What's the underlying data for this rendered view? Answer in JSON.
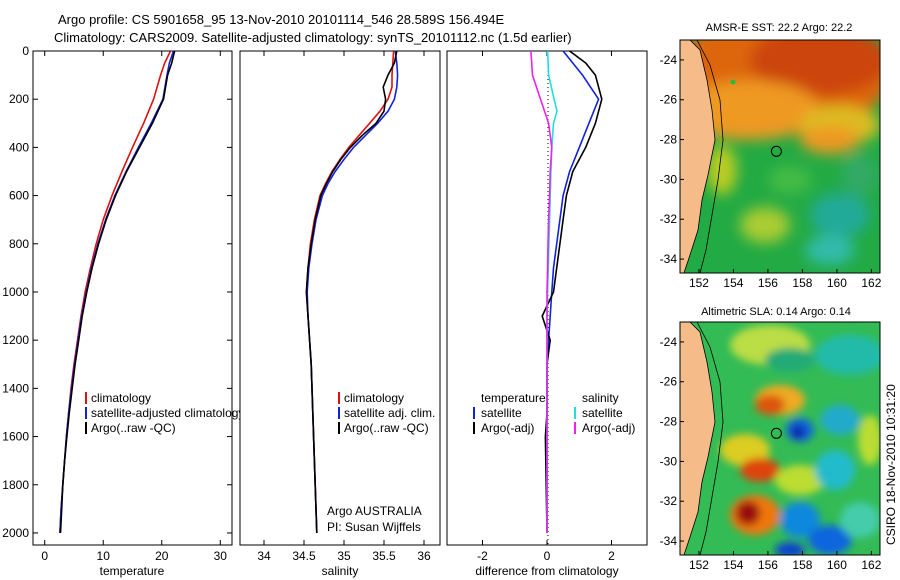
{
  "header": {
    "line1": "Argo profile: CS 5901658_95 13-Nov-2010 20101114_546 28.589S 156.494E",
    "line2": "Climatology: CARS2009. Satellite-adjusted climatology: synTS_20101112.nc (1.5d earlier)"
  },
  "side_label": "CSIRO 18-Nov-2010 10:31:20",
  "colors": {
    "climatology": "#dd1111",
    "satellite": "#1122dd",
    "argo": "#000000",
    "sat_salinity": "#22dddd",
    "argo_salinity_adj": "#ee22ee",
    "land": "#f5bb88"
  },
  "chart_data": [
    {
      "type": "line",
      "id": "temperature",
      "xlabel": "temperature",
      "ylabel": "",
      "xlim": [
        -2,
        32
      ],
      "ylim": [
        2050,
        0
      ],
      "xticks": [
        0,
        10,
        20,
        30
      ],
      "yticks": [
        0,
        200,
        400,
        600,
        800,
        1000,
        1200,
        1400,
        1600,
        1800,
        2000
      ],
      "legend": [
        "climatology",
        "satellite-adjusted climatology",
        "Argo(..raw -QC)"
      ],
      "series": [
        {
          "name": "climatology",
          "color": "#dd1111",
          "points": [
            [
              21.5,
              0
            ],
            [
              20.5,
              50
            ],
            [
              19.8,
              100
            ],
            [
              18.6,
              200
            ],
            [
              16.9,
              300
            ],
            [
              15.0,
              400
            ],
            [
              13.2,
              500
            ],
            [
              11.5,
              600
            ],
            [
              10.0,
              700
            ],
            [
              8.8,
              800
            ],
            [
              7.8,
              900
            ],
            [
              6.9,
              1000
            ],
            [
              6.2,
              1100
            ],
            [
              5.6,
              1200
            ],
            [
              5.0,
              1300
            ],
            [
              4.5,
              1400
            ],
            [
              4.1,
              1500
            ],
            [
              3.7,
              1600
            ],
            [
              3.4,
              1700
            ],
            [
              3.1,
              1800
            ],
            [
              2.8,
              1900
            ],
            [
              2.6,
              2000
            ]
          ]
        },
        {
          "name": "satellite",
          "color": "#1122dd",
          "points": [
            [
              22.0,
              0
            ],
            [
              21.3,
              50
            ],
            [
              20.9,
              100
            ],
            [
              20.2,
              200
            ],
            [
              18.2,
              300
            ],
            [
              16.0,
              400
            ],
            [
              13.9,
              500
            ],
            [
              12.0,
              600
            ],
            [
              10.4,
              700
            ],
            [
              9.1,
              800
            ],
            [
              8.0,
              900
            ],
            [
              7.1,
              1000
            ],
            [
              6.3,
              1100
            ],
            [
              5.7,
              1200
            ],
            [
              5.1,
              1300
            ],
            [
              4.6,
              1400
            ],
            [
              4.1,
              1500
            ],
            [
              3.7,
              1600
            ],
            [
              3.4,
              1700
            ],
            [
              3.1,
              1800
            ],
            [
              2.8,
              1900
            ],
            [
              2.6,
              2000
            ]
          ]
        },
        {
          "name": "Argo",
          "color": "#000000",
          "points": [
            [
              22.2,
              0
            ],
            [
              21.7,
              50
            ],
            [
              21.0,
              100
            ],
            [
              20.3,
              200
            ],
            [
              18.4,
              300
            ],
            [
              16.2,
              400
            ],
            [
              14.0,
              500
            ],
            [
              12.1,
              600
            ],
            [
              10.5,
              700
            ],
            [
              9.2,
              800
            ],
            [
              8.1,
              900
            ],
            [
              7.2,
              1000
            ],
            [
              6.4,
              1100
            ],
            [
              5.8,
              1200
            ],
            [
              5.2,
              1300
            ],
            [
              4.7,
              1400
            ],
            [
              4.2,
              1500
            ],
            [
              3.8,
              1600
            ],
            [
              3.4,
              1700
            ],
            [
              3.1,
              1800
            ],
            [
              2.9,
              1900
            ],
            [
              2.7,
              2000
            ]
          ]
        }
      ]
    },
    {
      "type": "line",
      "id": "salinity",
      "xlabel": "salinity",
      "xlim": [
        33.7,
        36.2
      ],
      "ylim": [
        2050,
        0
      ],
      "xticks": [
        34,
        34.5,
        35,
        35.5,
        36
      ],
      "yticks": [],
      "legend": [
        "climatology",
        "satellite adj. clim.",
        "Argo(..raw -QC)"
      ],
      "annotation": [
        "Argo AUSTRALIA",
        "PI: Susan Wijffels"
      ],
      "series": [
        {
          "name": "climatology",
          "color": "#dd1111",
          "points": [
            [
              35.62,
              0
            ],
            [
              35.61,
              50
            ],
            [
              35.6,
              100
            ],
            [
              35.6,
              150
            ],
            [
              35.55,
              200
            ],
            [
              35.45,
              250
            ],
            [
              35.32,
              300
            ],
            [
              35.19,
              350
            ],
            [
              35.06,
              400
            ],
            [
              34.95,
              450
            ],
            [
              34.85,
              500
            ],
            [
              34.77,
              550
            ],
            [
              34.7,
              600
            ],
            [
              34.63,
              700
            ],
            [
              34.58,
              800
            ],
            [
              34.55,
              900
            ],
            [
              34.53,
              1000
            ],
            [
              34.55,
              1100
            ],
            [
              34.57,
              1200
            ],
            [
              34.59,
              1300
            ],
            [
              34.6,
              1400
            ],
            [
              34.61,
              1500
            ],
            [
              34.62,
              1600
            ],
            [
              34.63,
              1700
            ],
            [
              34.64,
              1800
            ],
            [
              34.65,
              1900
            ],
            [
              34.66,
              2000
            ]
          ]
        },
        {
          "name": "satellite",
          "color": "#1122dd",
          "points": [
            [
              35.64,
              0
            ],
            [
              35.66,
              50
            ],
            [
              35.67,
              100
            ],
            [
              35.66,
              150
            ],
            [
              35.63,
              200
            ],
            [
              35.55,
              250
            ],
            [
              35.42,
              300
            ],
            [
              35.27,
              350
            ],
            [
              35.12,
              400
            ],
            [
              35.0,
              450
            ],
            [
              34.89,
              500
            ],
            [
              34.8,
              550
            ],
            [
              34.73,
              600
            ],
            [
              34.65,
              700
            ],
            [
              34.6,
              800
            ],
            [
              34.56,
              900
            ],
            [
              34.54,
              1000
            ],
            [
              34.55,
              1100
            ],
            [
              34.57,
              1200
            ],
            [
              34.59,
              1300
            ],
            [
              34.6,
              1400
            ],
            [
              34.61,
              1500
            ],
            [
              34.62,
              1600
            ],
            [
              34.63,
              1700
            ],
            [
              34.64,
              1800
            ],
            [
              34.65,
              1900
            ],
            [
              34.66,
              2000
            ]
          ]
        },
        {
          "name": "Argo",
          "color": "#000000",
          "points": [
            [
              35.66,
              0
            ],
            [
              35.63,
              50
            ],
            [
              35.55,
              100
            ],
            [
              35.49,
              150
            ],
            [
              35.52,
              200
            ],
            [
              35.5,
              250
            ],
            [
              35.4,
              300
            ],
            [
              35.23,
              350
            ],
            [
              35.08,
              400
            ],
            [
              34.96,
              450
            ],
            [
              34.86,
              500
            ],
            [
              34.78,
              550
            ],
            [
              34.71,
              600
            ],
            [
              34.64,
              700
            ],
            [
              34.59,
              800
            ],
            [
              34.55,
              900
            ],
            [
              34.53,
              1000
            ],
            [
              34.55,
              1100
            ],
            [
              34.57,
              1200
            ],
            [
              34.59,
              1300
            ],
            [
              34.6,
              1400
            ],
            [
              34.61,
              1500
            ],
            [
              34.62,
              1600
            ],
            [
              34.63,
              1700
            ],
            [
              34.64,
              1800
            ],
            [
              34.65,
              1900
            ],
            [
              34.66,
              2000
            ]
          ]
        }
      ]
    },
    {
      "type": "line",
      "id": "difference",
      "xlabel": "difference from climatology",
      "xlim": [
        -3.1,
        3.1
      ],
      "ylim": [
        2050,
        0
      ],
      "xticks": [
        -2,
        0,
        2
      ],
      "yticks": [],
      "legend_left": [
        "temperature",
        "satellite",
        "Argo(-adj)"
      ],
      "legend_right": [
        "salinity",
        "satellite",
        "Argo(-adj)"
      ],
      "series": [
        {
          "name": "temperature satellite",
          "color": "#1122dd",
          "points": [
            [
              0.5,
              0
            ],
            [
              0.8,
              50
            ],
            [
              1.1,
              100
            ],
            [
              1.6,
              200
            ],
            [
              1.3,
              300
            ],
            [
              1.0,
              400
            ],
            [
              0.7,
              500
            ],
            [
              0.5,
              600
            ],
            [
              0.4,
              700
            ],
            [
              0.3,
              800
            ],
            [
              0.2,
              900
            ],
            [
              0.15,
              1000
            ],
            [
              0.1,
              1100
            ],
            [
              0.05,
              1200
            ],
            [
              0.0,
              1300
            ],
            [
              0.0,
              1500
            ],
            [
              0.0,
              2000
            ]
          ]
        },
        {
          "name": "temperature Argo",
          "color": "#000000",
          "points": [
            [
              0.7,
              0
            ],
            [
              1.2,
              50
            ],
            [
              1.5,
              100
            ],
            [
              1.7,
              200
            ],
            [
              1.5,
              300
            ],
            [
              1.2,
              400
            ],
            [
              0.8,
              500
            ],
            [
              0.6,
              600
            ],
            [
              0.5,
              700
            ],
            [
              0.4,
              800
            ],
            [
              0.3,
              900
            ],
            [
              0.2,
              1000
            ],
            [
              -0.15,
              1100
            ],
            [
              0.1,
              1200
            ],
            [
              0.0,
              1300
            ],
            [
              0.0,
              1500
            ],
            [
              -0.05,
              1600
            ],
            [
              0.0,
              2000
            ]
          ]
        },
        {
          "name": "salinity satellite",
          "color": "#22dddd",
          "points": [
            [
              0.02,
              0
            ],
            [
              0.05,
              100
            ],
            [
              0.22,
              200
            ],
            [
              0.31,
              250
            ],
            [
              0.2,
              300
            ],
            [
              0.15,
              400
            ],
            [
              0.12,
              500
            ],
            [
              0.1,
              600
            ],
            [
              0.08,
              700
            ],
            [
              0.06,
              800
            ],
            [
              0.04,
              900
            ],
            [
              0.02,
              1000
            ],
            [
              0.0,
              1100
            ],
            [
              0.0,
              2000
            ]
          ]
        },
        {
          "name": "salinity Argo(-adj)",
          "color": "#ee22ee",
          "points": [
            [
              -0.5,
              0
            ],
            [
              -0.45,
              100
            ],
            [
              -0.2,
              200
            ],
            [
              0.05,
              300
            ],
            [
              0.15,
              400
            ],
            [
              0.1,
              500
            ],
            [
              0.08,
              600
            ],
            [
              0.05,
              700
            ],
            [
              0.03,
              800
            ],
            [
              0.02,
              900
            ],
            [
              0.0,
              1000
            ],
            [
              0.0,
              2000
            ]
          ]
        }
      ]
    },
    {
      "type": "heatmap",
      "id": "sst_map",
      "title": "AMSR-E SST: 22.2 Argo: 22.2",
      "xlim": [
        150.9,
        162.5
      ],
      "ylim": [
        -34.7,
        -23.0
      ],
      "xticks": [
        152,
        154,
        156,
        158,
        160,
        162
      ],
      "yticks": [
        -24,
        -26,
        -28,
        -30,
        -32,
        -34
      ],
      "argo_position": [
        156.49,
        -28.59
      ]
    },
    {
      "type": "heatmap",
      "id": "sla_map",
      "title": "Altimetric SLA: 0.14 Argo: 0.14",
      "xlim": [
        150.9,
        162.5
      ],
      "ylim": [
        -34.7,
        -23.0
      ],
      "xticks": [
        152,
        154,
        156,
        158,
        160,
        162
      ],
      "yticks": [
        -24,
        -26,
        -28,
        -30,
        -32,
        -34
      ],
      "argo_position": [
        156.49,
        -28.59
      ]
    }
  ]
}
